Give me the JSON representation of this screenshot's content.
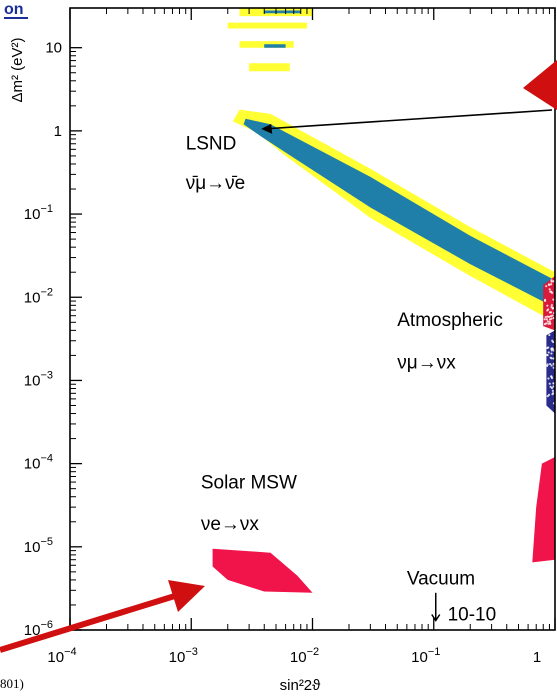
{
  "chart_data": {
    "type": "scatter",
    "title": "",
    "xlabel": "sin²2ϑ",
    "ylabel": "Δm² (eV²)",
    "x_scale": "log",
    "y_scale": "log",
    "xlim": [
      0.0001,
      1
    ],
    "ylim": [
      1e-06,
      30
    ],
    "x_ticks": [
      {
        "value": 0.0001,
        "base": "10",
        "exp": "−4"
      },
      {
        "value": 0.001,
        "base": "10",
        "exp": "−3"
      },
      {
        "value": 0.01,
        "base": "10",
        "exp": "−2"
      },
      {
        "value": 0.1,
        "base": "10",
        "exp": "−1"
      },
      {
        "value": 1,
        "base": "1",
        "exp": ""
      }
    ],
    "y_ticks": [
      {
        "value": 10,
        "base": "10",
        "exp": ""
      },
      {
        "value": 1,
        "base": "1",
        "exp": ""
      },
      {
        "value": 0.1,
        "base": "10",
        "exp": "−1"
      },
      {
        "value": 0.01,
        "base": "10",
        "exp": "−2"
      },
      {
        "value": 0.001,
        "base": "10",
        "exp": "−3"
      },
      {
        "value": 0.0001,
        "base": "10",
        "exp": "−4"
      },
      {
        "value": 1e-05,
        "base": "10",
        "exp": "−5"
      },
      {
        "value": 1e-06,
        "base": "10",
        "exp": "−6"
      }
    ],
    "grid": false,
    "regions": [
      {
        "name": "LSND",
        "color": "#ffff33",
        "points": [
          [
            0.0025,
            1.8
          ],
          [
            0.0045,
            1.6
          ],
          [
            0.03,
            0.35
          ],
          [
            0.2,
            0.07
          ],
          [
            1,
            0.02
          ],
          [
            1,
            0.005
          ],
          [
            0.2,
            0.018
          ],
          [
            0.03,
            0.09
          ],
          [
            0.006,
            0.5
          ],
          [
            0.0035,
            0.95
          ],
          [
            0.0022,
            1.3
          ]
        ]
      },
      {
        "name": "LSND",
        "color": "#1f7fa8",
        "points": [
          [
            0.0028,
            1.4
          ],
          [
            0.0045,
            1.2
          ],
          [
            0.03,
            0.28
          ],
          [
            0.2,
            0.055
          ],
          [
            1,
            0.016
          ],
          [
            1,
            0.0075
          ],
          [
            0.2,
            0.025
          ],
          [
            0.03,
            0.12
          ],
          [
            0.006,
            0.55
          ],
          [
            0.0038,
            0.85
          ],
          [
            0.0027,
            1.2
          ]
        ]
      },
      {
        "name": "Solar MSW",
        "color": "#f0144a",
        "points": [
          [
            0.0015,
            9.5e-06
          ],
          [
            0.0045,
            8.5e-06
          ],
          [
            0.0075,
            4.5e-06
          ],
          [
            0.01,
            2.8e-06
          ],
          [
            0.004,
            2.9e-06
          ],
          [
            0.002,
            4e-06
          ],
          [
            0.0015,
            5.8e-06
          ]
        ]
      },
      {
        "name": "Solar MSW",
        "color": "#f0144a",
        "points": [
          [
            0.78,
            0.0001
          ],
          [
            1,
            0.00012
          ],
          [
            1,
            7e-06
          ],
          [
            0.65,
            6.5e-06
          ],
          [
            0.7,
            3e-05
          ]
        ]
      },
      {
        "name": "Atmospheric",
        "color": "#d81b3a",
        "points": [
          [
            0.8,
            0.014
          ],
          [
            1,
            0.018
          ],
          [
            1,
            0.004
          ],
          [
            0.8,
            0.0045
          ]
        ]
      },
      {
        "name": "Atmospheric",
        "color": "#2a2a8a",
        "points": [
          [
            0.85,
            0.0035
          ],
          [
            1,
            0.004
          ],
          [
            1,
            0.0004
          ],
          [
            0.85,
            0.0005
          ]
        ]
      }
    ],
    "top_fragments": [
      {
        "color": "#ffff33",
        "points": [
          [
            0.0025,
            30
          ],
          [
            0.01,
            30
          ],
          [
            0.01,
            24
          ],
          [
            0.0025,
            24
          ]
        ]
      },
      {
        "color": "#1f7fa8",
        "points": [
          [
            0.004,
            28
          ],
          [
            0.008,
            28
          ],
          [
            0.008,
            26
          ],
          [
            0.004,
            26
          ]
        ]
      },
      {
        "color": "#ffff33",
        "points": [
          [
            0.002,
            20
          ],
          [
            0.009,
            20
          ],
          [
            0.009,
            17
          ],
          [
            0.002,
            17
          ]
        ]
      },
      {
        "color": "#ffff33",
        "points": [
          [
            0.0025,
            12
          ],
          [
            0.007,
            12
          ],
          [
            0.007,
            10
          ],
          [
            0.0025,
            10
          ]
        ]
      },
      {
        "color": "#1f7fa8",
        "points": [
          [
            0.004,
            11
          ],
          [
            0.006,
            11
          ],
          [
            0.006,
            10
          ],
          [
            0.004,
            10
          ]
        ]
      },
      {
        "color": "#ffff33",
        "points": [
          [
            0.003,
            6.5
          ],
          [
            0.0065,
            6.5
          ],
          [
            0.0065,
            5.2
          ],
          [
            0.003,
            5.2
          ]
        ]
      }
    ],
    "annotations": [
      {
        "name": "LSND",
        "text": "LSND",
        "x": 0.0009,
        "y": 0.6
      },
      {
        "name": "LSND-formula",
        "text": "ν̄μ→ν̄e",
        "x": 0.0009,
        "y": 0.2
      },
      {
        "name": "Atmospheric",
        "text": "Atmospheric",
        "x": 0.05,
        "y": 0.0045
      },
      {
        "name": "Atmospheric-formula",
        "text": "νμ→νx",
        "x": 0.05,
        "y": 0.0014
      },
      {
        "name": "Solar MSW",
        "text": "Solar MSW",
        "x": 0.0012,
        "y": 5e-05
      },
      {
        "name": "Solar-formula",
        "text": "νe→νx",
        "x": 0.0012,
        "y": 1.6e-05
      },
      {
        "name": "Vacuum",
        "text": "Vacuum",
        "x": 0.06,
        "y": 3.5e-06
      },
      {
        "name": "Vacuum-range",
        "text": "10-10",
        "x": 0.13,
        "y": 1.3e-06
      }
    ],
    "arrows": [
      {
        "name": "red-arrow-left",
        "color": "#d01010"
      },
      {
        "name": "red-arrow-right",
        "color": "#d01010"
      },
      {
        "name": "black-arrow",
        "color": "#000000"
      }
    ],
    "footnote": "801)",
    "header_fragment": "on"
  }
}
